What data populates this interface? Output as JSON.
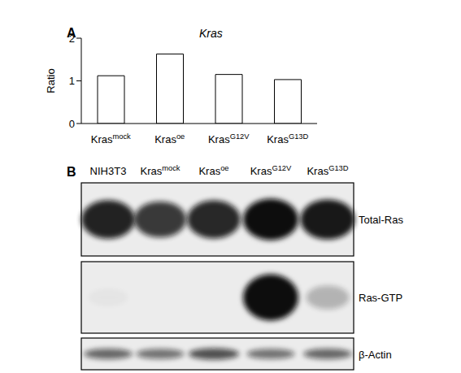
{
  "panel_labels": [
    "A",
    "B"
  ],
  "chart_data": {
    "type": "bar",
    "title": "Kras",
    "y_label": "Ratio",
    "categories": [
      "Kras mock",
      "Kras oe",
      "Kras G12V",
      "Kras G13D"
    ],
    "values": [
      1.12,
      1.63,
      1.15,
      1.03
    ],
    "color": "#ffffff",
    "ylim": [
      0,
      2
    ],
    "yticks": [
      0,
      1,
      2
    ],
    "grid": false
  },
  "blot": {
    "lanes": [
      "NIH3T3",
      "Kras mock",
      "Kras oe",
      "Kras G12V",
      "Kras G13D"
    ],
    "rows": [
      {
        "label": "Total-Ras",
        "intensity": [
          0.9,
          0.8,
          0.88,
          1,
          0.95
        ]
      },
      {
        "label": "Ras-GTP",
        "intensity": [
          0.03,
          0,
          0,
          1,
          0.25
        ]
      },
      {
        "label": "β-Actin",
        "intensity": [
          0.6,
          0.55,
          0.7,
          0.55,
          0.6
        ]
      }
    ]
  }
}
